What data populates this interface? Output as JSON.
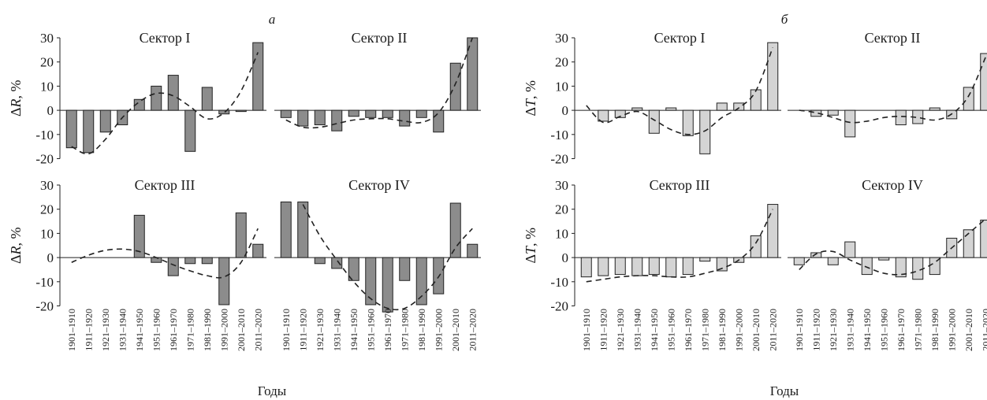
{
  "panels": [
    {
      "letter": "а",
      "years_label": "Годы",
      "ylabel_var": "R",
      "ylabel_unit": ", %"
    },
    {
      "letter": "б",
      "years_label": "Годы",
      "ylabel_var": "T",
      "ylabel_unit": ", %"
    }
  ],
  "decades": [
    "1901–1910",
    "1911–1920",
    "1921–1930",
    "1931–1940",
    "1941–1950",
    "1951–1960",
    "1961–1970",
    "1971–1980",
    "1981–1990",
    "1991–2000",
    "2001–2010",
    "2011–2020"
  ],
  "chart_data": [
    {
      "type": "bar",
      "panel": "а",
      "title": "Сектор I",
      "ylabel": "ΔR, %",
      "ylim": [
        -20,
        30
      ],
      "yticks": [
        30,
        20,
        10,
        0,
        -10,
        -20
      ],
      "bar_color": "#8c8c8c",
      "values": [
        -15.5,
        -17.5,
        -9,
        -6,
        4.5,
        10,
        14.5,
        -17,
        9.5,
        -1.5,
        -0.5,
        28
      ],
      "trend": [
        -15,
        -18,
        -12,
        -3,
        3.5,
        7,
        6,
        1.5,
        -3.5,
        -1,
        8,
        24
      ]
    },
    {
      "type": "bar",
      "panel": "а",
      "title": "Сектор II",
      "ylabel": "ΔR, %",
      "ylim": [
        -20,
        30
      ],
      "yticks": [
        30,
        20,
        10,
        0,
        -10,
        -20
      ],
      "bar_color": "#8c8c8c",
      "values": [
        -3,
        -6.5,
        -6,
        -8.5,
        -2.5,
        -3,
        -3,
        -6.5,
        -3,
        -9,
        19.5,
        30
      ],
      "trend": [
        -4,
        -7,
        -7,
        -5.5,
        -4,
        -3.5,
        -3.5,
        -4.5,
        -5,
        -1,
        11,
        30
      ]
    },
    {
      "type": "bar",
      "panel": "а",
      "title": "Сектор III",
      "ylabel": "ΔR, %",
      "ylim": [
        -20,
        30
      ],
      "yticks": [
        30,
        20,
        10,
        0,
        -10,
        -20
      ],
      "bar_color": "#8c8c8c",
      "values": [
        0,
        0,
        0,
        0,
        17.5,
        -2,
        -7.5,
        -2.5,
        -2.5,
        -19.5,
        18.5,
        5.5
      ],
      "trend": [
        -2,
        1,
        3,
        3.5,
        2.5,
        0,
        -3,
        -5.5,
        -7.5,
        -8,
        -2,
        12
      ]
    },
    {
      "type": "bar",
      "panel": "а",
      "title": "Сектор IV",
      "ylabel": "ΔR, %",
      "ylim": [
        -20,
        30
      ],
      "yticks": [
        30,
        20,
        10,
        0,
        -10,
        -20
      ],
      "bar_color": "#8c8c8c",
      "values": [
        23,
        23,
        -2.5,
        -4.5,
        -9.5,
        -19.5,
        -22.5,
        -9.5,
        -19.5,
        -15,
        22.5,
        5.5
      ],
      "trend": [
        null,
        22,
        9,
        -1,
        -10,
        -17,
        -21,
        -21,
        -16,
        -8,
        4,
        12
      ]
    },
    {
      "type": "bar",
      "panel": "б",
      "title": "Сектор I",
      "ylabel": "ΔT, %",
      "ylim": [
        -20,
        30
      ],
      "yticks": [
        30,
        20,
        10,
        0,
        -10,
        -20
      ],
      "bar_color": "#d4d4d4",
      "values": [
        0,
        -4.5,
        -3,
        1,
        -9.5,
        1,
        -10.5,
        -18,
        3,
        3,
        8.5,
        28
      ],
      "trend": [
        2,
        -5,
        -2.5,
        -0.5,
        -4,
        -8,
        -10,
        -8.5,
        -3,
        1,
        8,
        26
      ]
    },
    {
      "type": "bar",
      "panel": "б",
      "title": "Сектор II",
      "ylabel": "ΔT, %",
      "ylim": [
        -20,
        30
      ],
      "yticks": [
        30,
        20,
        10,
        0,
        -10,
        -20
      ],
      "bar_color": "#d4d4d4",
      "values": [
        0,
        -2.5,
        -2,
        -11,
        0,
        0,
        -6,
        -5.5,
        1,
        -3.5,
        9.5,
        23.5
      ],
      "trend": [
        0,
        -1,
        -3,
        -5,
        -4.5,
        -3,
        -2.5,
        -3,
        -4,
        -1.5,
        6,
        22
      ]
    },
    {
      "type": "bar",
      "panel": "б",
      "title": "Сектор III",
      "ylabel": "ΔT, %",
      "ylim": [
        -20,
        30
      ],
      "yticks": [
        30,
        20,
        10,
        0,
        -10,
        -20
      ],
      "bar_color": "#d4d4d4",
      "values": [
        -8,
        -7.5,
        -7,
        -7.5,
        -7,
        -8,
        -7,
        -1.5,
        -5.5,
        -2,
        9,
        22
      ],
      "trend": [
        -10,
        -9,
        -8,
        -7.5,
        -7.5,
        -8,
        -8,
        -6.5,
        -4.5,
        -1,
        6,
        20
      ]
    },
    {
      "type": "bar",
      "panel": "б",
      "title": "Сектор IV",
      "ylabel": "ΔT, %",
      "ylim": [
        -20,
        30
      ],
      "yticks": [
        30,
        20,
        10,
        0,
        -10,
        -20
      ],
      "bar_color": "#d4d4d4",
      "values": [
        -3,
        2,
        -3,
        6.5,
        -7,
        -1,
        -8,
        -9,
        -7,
        8,
        11.5,
        15.5
      ],
      "trend": [
        -5,
        1.5,
        2.5,
        -1,
        -4,
        -6.5,
        -7,
        -5.5,
        -2,
        4,
        10,
        16
      ]
    }
  ]
}
